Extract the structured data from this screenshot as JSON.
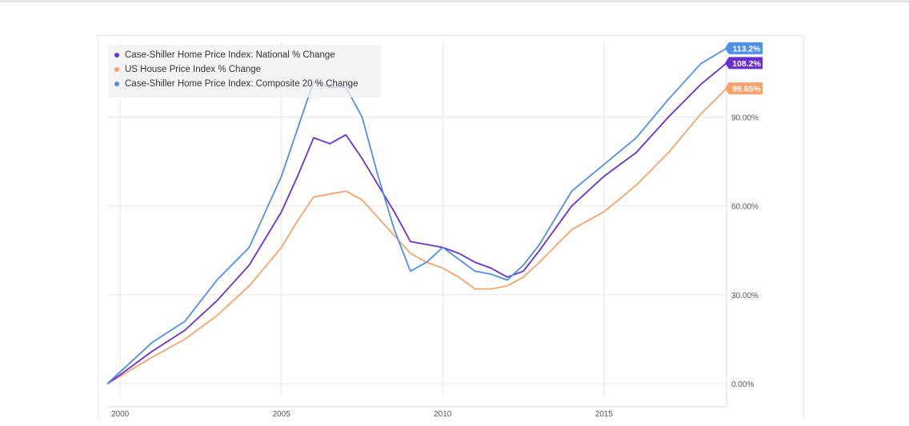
{
  "chart_data": {
    "type": "line",
    "x_ticks": [
      "2000",
      "2005",
      "2010",
      "2015"
    ],
    "y_ticks": [
      "0.00%",
      "30.00%",
      "60.00%",
      "90.00%"
    ],
    "y_tick_values": [
      0,
      30,
      60,
      90
    ],
    "xlim": [
      1999.6,
      2018.8
    ],
    "ylim": [
      -4,
      116
    ],
    "grid": true,
    "legend_position": "top-left",
    "series": [
      {
        "name": "Case-Shiller Home Price Index: National % Change",
        "color": "#6a2fd1",
        "end_label": "108.2%",
        "x": [
          1999.6,
          2000,
          2001,
          2002,
          2003,
          2004,
          2005,
          2005.5,
          2006,
          2006.5,
          2007,
          2007.5,
          2008,
          2008.5,
          2009,
          2009.5,
          2010,
          2010.5,
          2011,
          2011.5,
          2012,
          2012.5,
          2013,
          2014,
          2015,
          2016,
          2017,
          2018,
          2018.8
        ],
        "y": [
          0,
          3,
          11,
          18,
          28,
          40,
          58,
          70,
          83,
          81,
          84,
          76,
          67,
          58,
          48,
          47,
          46,
          44,
          41,
          39,
          36,
          38,
          45,
          60,
          70,
          78,
          90,
          101,
          108.2
        ]
      },
      {
        "name": "US House Price Index % Change",
        "color": "#f6a36a",
        "end_label": "99.65%",
        "x": [
          1999.6,
          2000,
          2001,
          2002,
          2003,
          2004,
          2005,
          2005.5,
          2006,
          2006.5,
          2007,
          2007.5,
          2008,
          2008.5,
          2009,
          2009.5,
          2010,
          2010.5,
          2011,
          2011.5,
          2012,
          2012.5,
          2013,
          2014,
          2015,
          2016,
          2017,
          2018,
          2018.8
        ],
        "y": [
          0,
          2.5,
          9,
          15,
          23,
          33,
          46,
          55,
          63,
          64,
          65,
          62,
          56,
          50,
          44,
          41,
          39,
          36,
          32,
          32,
          33,
          36,
          41,
          52,
          58,
          67,
          78,
          91,
          99.65
        ]
      },
      {
        "name": "Case-Shiller Home Price Index: Composite 20 % Change",
        "color": "#4f8fe6",
        "end_label": "113.2%",
        "x": [
          1999.6,
          2000,
          2001,
          2002,
          2003,
          2004,
          2005,
          2005.5,
          2006,
          2006.5,
          2007,
          2007.5,
          2008,
          2008.5,
          2009,
          2009.5,
          2010,
          2010.5,
          2011,
          2011.5,
          2012,
          2012.5,
          2013,
          2014,
          2015,
          2016,
          2017,
          2018,
          2018.8
        ],
        "y": [
          0,
          4,
          14,
          21,
          35,
          46,
          70,
          86,
          102,
          100,
          100,
          90,
          70,
          52,
          38,
          41,
          46,
          42,
          38,
          37,
          35,
          40,
          47,
          65,
          74,
          83,
          96,
          108,
          113.2
        ]
      }
    ]
  }
}
